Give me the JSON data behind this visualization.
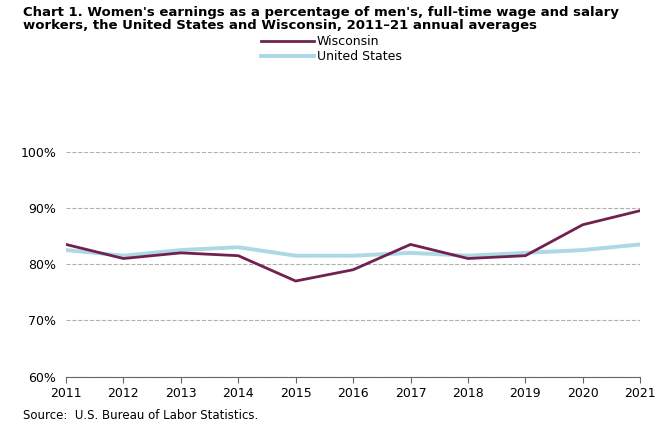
{
  "title_line1": "Chart 1. Women's earnings as a percentage of men's, full-time wage and salary",
  "title_line2": "workers, the United States and Wisconsin, 2011–21 annual averages",
  "years": [
    2011,
    2012,
    2013,
    2014,
    2015,
    2016,
    2017,
    2018,
    2019,
    2020,
    2021
  ],
  "wisconsin": [
    83.5,
    81.0,
    82.0,
    81.5,
    77.0,
    79.0,
    83.5,
    81.0,
    81.5,
    87.0,
    89.5
  ],
  "us": [
    82.5,
    81.5,
    82.5,
    83.0,
    81.5,
    81.5,
    82.0,
    81.5,
    82.0,
    82.5,
    83.5
  ],
  "wisconsin_color": "#722050",
  "us_color": "#add8e6",
  "wisconsin_label": "Wisconsin",
  "us_label": "United States",
  "ylim": [
    60,
    100
  ],
  "yticks": [
    60,
    70,
    80,
    90,
    100
  ],
  "ytick_labels": [
    "60%",
    "70%",
    "80%",
    "90%",
    "100%"
  ],
  "source": "Source:  U.S. Bureau of Labor Statistics.",
  "grid_color": "#b0b0b0",
  "line_width": 2.0,
  "background_color": "#ffffff"
}
